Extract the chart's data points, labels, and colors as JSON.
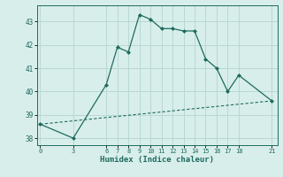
{
  "xlabel": "Humidex (Indice chaleur)",
  "background_color": "#d8eeeb",
  "grid_color": "#b8d8d4",
  "line_color": "#1e6b5e",
  "line1_x": [
    0,
    3,
    6,
    7,
    8,
    9,
    10,
    11,
    12,
    13,
    14,
    15,
    16,
    17,
    18,
    21
  ],
  "line1_y": [
    38.6,
    38.0,
    40.3,
    41.9,
    41.7,
    43.3,
    43.1,
    42.7,
    42.7,
    42.6,
    42.6,
    41.4,
    41.0,
    40.0,
    40.7,
    39.6
  ],
  "line2_x": [
    0,
    21
  ],
  "line2_y": [
    38.6,
    39.6
  ],
  "xticks": [
    0,
    3,
    6,
    7,
    8,
    9,
    10,
    11,
    12,
    13,
    14,
    15,
    16,
    17,
    18,
    21
  ],
  "yticks": [
    38,
    39,
    40,
    41,
    42,
    43
  ],
  "ylim": [
    37.7,
    43.7
  ],
  "xlim": [
    -0.3,
    21.5
  ]
}
